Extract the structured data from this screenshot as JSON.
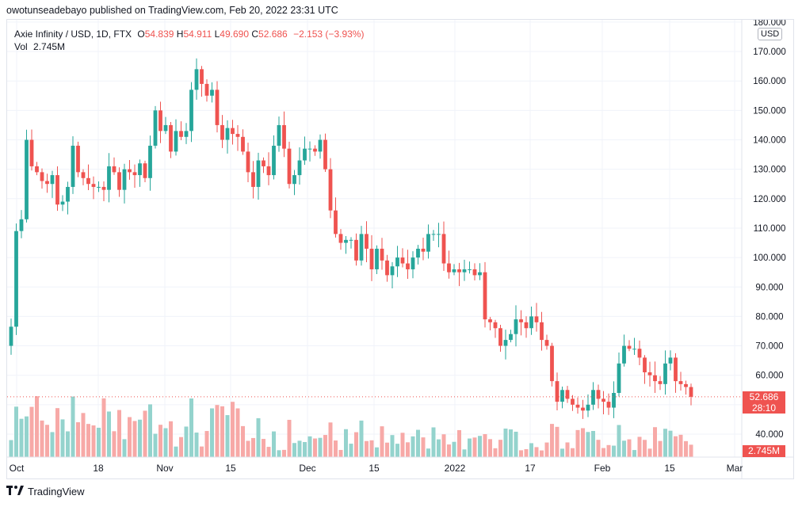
{
  "header": {
    "publisher": "owotunseadebayo published on TradingView.com, Feb 20, 2022 23:31 UTC"
  },
  "legend": {
    "symbol": "Axie Infinity / USD, 1D, FTX",
    "o_label": "O",
    "o_value": "54.839",
    "h_label": "H",
    "h_value": "54.911",
    "l_label": "L",
    "l_value": "49.690",
    "c_label": "C",
    "c_value": "52.686",
    "change": "−2.153 (−3.93%)",
    "vol_label": "Vol",
    "vol_value": "2.745M"
  },
  "currency_badge": "USD",
  "price_tag": {
    "value": "52.686",
    "countdown": "28:10"
  },
  "volume_tag": "2.745M",
  "footer": {
    "brand": "TradingView"
  },
  "colors": {
    "up": "#26a69a",
    "down": "#ef5350",
    "up_vol": "#94d3cd",
    "down_vol": "#f7a9a7",
    "grid": "#f0f3fa"
  },
  "chart_data": {
    "type": "candlestick",
    "title": "Axie Infinity / USD, 1D, FTX",
    "x_start_date": "2021-09-30",
    "x_ticks": [
      "Oct",
      "18",
      "Nov",
      "15",
      "Dec",
      "15",
      "2022",
      "17",
      "Feb",
      "15",
      "Mar"
    ],
    "y_ticks": [
      "40.000",
      "50.000",
      "60.000",
      "70.000",
      "80.000",
      "90.000",
      "100.000",
      "110.000",
      "120.000",
      "130.000",
      "140.000",
      "150.000",
      "160.000",
      "170.000",
      "180.000"
    ],
    "ylim": [
      37,
      181
    ],
    "grid": true,
    "y_axis_position": "right",
    "close": [
      76.5,
      109,
      113,
      140,
      131,
      129,
      126,
      125,
      128,
      118,
      119,
      124,
      138,
      129,
      127,
      125,
      124,
      124,
      123,
      131,
      129,
      123,
      130,
      129,
      128,
      132,
      127,
      138,
      150,
      143,
      145,
      136,
      143,
      141,
      143,
      157,
      164,
      159,
      155,
      157,
      145,
      140,
      144,
      142,
      141,
      136,
      129,
      124,
      133,
      131,
      128,
      138,
      145,
      137,
      125,
      128,
      133,
      137,
      137,
      136,
      140,
      130,
      116,
      108,
      105,
      106,
      106,
      99,
      108,
      103,
      96,
      103,
      99,
      94,
      97,
      100,
      98,
      96,
      100,
      103,
      102,
      108,
      108,
      108,
      98,
      95,
      96,
      95,
      96,
      96,
      94,
      95,
      79,
      78,
      76,
      70,
      72,
      74,
      79,
      78,
      76,
      80,
      78,
      72,
      70,
      58,
      51,
      55,
      52,
      50,
      49,
      48,
      50,
      55,
      52,
      51,
      49,
      54,
      64,
      70,
      69,
      69,
      66,
      61,
      60,
      58,
      57,
      64,
      66,
      58,
      57,
      56,
      52.686
    ],
    "volume": [
      "estimated, in millions — not printed on chart"
    ]
  }
}
